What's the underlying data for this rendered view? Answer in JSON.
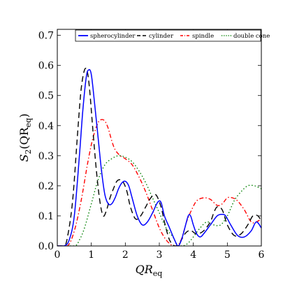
{
  "chart_data": {
    "type": "line",
    "title": "",
    "xlabel_main": "QR",
    "xlabel_sub": "eq",
    "ylabel_prefix": "S",
    "ylabel_sub2": "2",
    "ylabel_open": "(QR",
    "ylabel_sub": "eq",
    "ylabel_close": ")",
    "xlim": [
      0,
      6
    ],
    "ylim": [
      0,
      0.72
    ],
    "xticks": [
      0,
      1,
      2,
      3,
      4,
      5,
      6
    ],
    "xtick_labels": [
      "0",
      "1",
      "2",
      "3",
      "4",
      "5",
      "6"
    ],
    "yticks": [
      0,
      0.1,
      0.2,
      0.3,
      0.4,
      0.5,
      0.6,
      0.7
    ],
    "ytick_labels": [
      "0.0",
      "0.1",
      "0.2",
      "0.3",
      "0.4",
      "0.5",
      "0.6",
      "0.7"
    ],
    "grid": false,
    "legend_placement": "top-right",
    "series": [
      {
        "name": "spherocylinder",
        "color": "#0000ff",
        "dash": "solid",
        "x": [
          0,
          0.2,
          0.35,
          0.5,
          0.65,
          0.75,
          0.85,
          0.92,
          1.0,
          1.1,
          1.2,
          1.3,
          1.4,
          1.5,
          1.6,
          1.7,
          1.8,
          1.9,
          2.0,
          2.1,
          2.2,
          2.35,
          2.5,
          2.65,
          2.8,
          2.95,
          3.05,
          3.15,
          3.3,
          3.45,
          3.55,
          3.65,
          3.75,
          3.85,
          3.92,
          4.0,
          4.1,
          4.2,
          4.3,
          4.5,
          4.7,
          4.85,
          4.95,
          5.1,
          5.3,
          5.5,
          5.7,
          5.85,
          6.0
        ],
        "y": [
          0,
          0.0,
          0.02,
          0.1,
          0.3,
          0.45,
          0.56,
          0.585,
          0.57,
          0.47,
          0.36,
          0.25,
          0.17,
          0.14,
          0.14,
          0.16,
          0.19,
          0.21,
          0.215,
          0.2,
          0.16,
          0.1,
          0.07,
          0.08,
          0.11,
          0.145,
          0.145,
          0.1,
          0.06,
          0.02,
          0.0,
          0.02,
          0.06,
          0.1,
          0.1,
          0.07,
          0.04,
          0.03,
          0.04,
          0.07,
          0.1,
          0.105,
          0.1,
          0.07,
          0.035,
          0.03,
          0.05,
          0.08,
          0.06
        ]
      },
      {
        "name": "cylinder",
        "color": "#000000",
        "dash": "8,5",
        "x": [
          0,
          0.2,
          0.3,
          0.45,
          0.6,
          0.7,
          0.8,
          0.88,
          0.95,
          1.05,
          1.15,
          1.25,
          1.35,
          1.45,
          1.55,
          1.65,
          1.75,
          1.85,
          1.95,
          2.05,
          2.15,
          2.3,
          2.45,
          2.6,
          2.75,
          2.9,
          3.05,
          3.15,
          3.3,
          3.45,
          3.55,
          3.65,
          3.75,
          3.85,
          3.95,
          4.1,
          4.3,
          4.5,
          4.6,
          4.7,
          4.85,
          5.0,
          5.2,
          5.4,
          5.6,
          5.75,
          5.9,
          6.0
        ],
        "y": [
          0,
          0.0,
          0.03,
          0.15,
          0.38,
          0.52,
          0.585,
          0.58,
          0.52,
          0.38,
          0.25,
          0.15,
          0.1,
          0.12,
          0.16,
          0.19,
          0.215,
          0.22,
          0.21,
          0.18,
          0.13,
          0.09,
          0.1,
          0.13,
          0.16,
          0.17,
          0.13,
          0.08,
          0.02,
          0.0,
          0.0,
          0.02,
          0.04,
          0.05,
          0.05,
          0.04,
          0.05,
          0.08,
          0.11,
          0.13,
          0.12,
          0.07,
          0.035,
          0.04,
          0.07,
          0.1,
          0.1,
          0.08
        ]
      },
      {
        "name": "spindle",
        "color": "#ff0000",
        "dash": "6,3,1.5,3",
        "x": [
          0,
          0.3,
          0.5,
          0.7,
          0.9,
          1.05,
          1.2,
          1.3,
          1.4,
          1.5,
          1.6,
          1.7,
          1.85,
          2.0,
          2.2,
          2.4,
          2.6,
          2.8,
          3.0,
          3.2,
          3.4,
          3.5,
          3.6,
          3.7,
          3.8,
          3.95,
          4.1,
          4.3,
          4.5,
          4.7,
          4.85,
          5.0,
          5.15,
          5.3,
          5.5,
          5.7,
          5.85,
          6.0
        ],
        "y": [
          0,
          0.0,
          0.05,
          0.15,
          0.28,
          0.36,
          0.41,
          0.42,
          0.415,
          0.39,
          0.35,
          0.32,
          0.3,
          0.29,
          0.27,
          0.23,
          0.18,
          0.12,
          0.06,
          0.02,
          0.0,
          0.0,
          0.01,
          0.04,
          0.08,
          0.12,
          0.15,
          0.16,
          0.155,
          0.135,
          0.14,
          0.16,
          0.16,
          0.15,
          0.12,
          0.08,
          0.08,
          0.09
        ]
      },
      {
        "name": "double cone",
        "color": "#008000",
        "dash": "1.5,3",
        "x": [
          0,
          0.5,
          0.65,
          0.8,
          1.0,
          1.2,
          1.4,
          1.6,
          1.8,
          2.0,
          2.2,
          2.4,
          2.6,
          2.8,
          3.0,
          3.2,
          3.4,
          3.55,
          3.7,
          3.85,
          4.0,
          4.2,
          4.4,
          4.6,
          4.8,
          5.0,
          5.2,
          5.4,
          5.6,
          5.8,
          6.0
        ],
        "y": [
          0,
          0.0,
          0.02,
          0.06,
          0.14,
          0.22,
          0.27,
          0.29,
          0.3,
          0.295,
          0.28,
          0.25,
          0.21,
          0.16,
          0.11,
          0.06,
          0.03,
          0.0,
          0.0,
          0.01,
          0.03,
          0.06,
          0.08,
          0.07,
          0.07,
          0.1,
          0.15,
          0.18,
          0.2,
          0.2,
          0.19
        ]
      }
    ]
  }
}
